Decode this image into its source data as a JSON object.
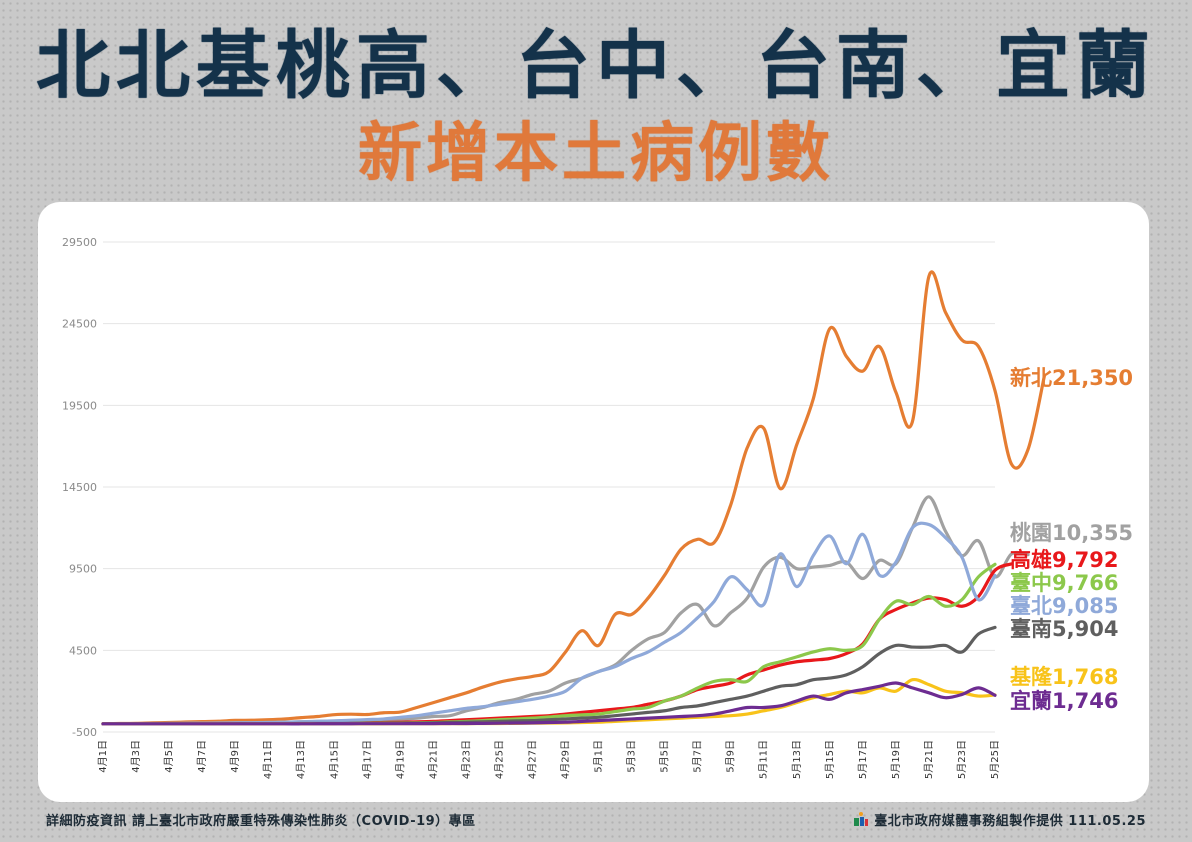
{
  "header": {
    "title": "北北基桃高、台中、台南、宜蘭",
    "subtitle": "新增本土病例數"
  },
  "footer": {
    "left": "詳細防疫資訊 請上臺北市政府嚴重特殊傳染性肺炎（COVID-19）專區",
    "right": "臺北市政府媒體事務組製作提供 111.05.25",
    "logo_icon": "taipei-city-logo-icon"
  },
  "chart_data": {
    "type": "line",
    "title": "新增本土病例數",
    "ylim": [
      -500,
      29500
    ],
    "yticks": [
      "29500",
      "24500",
      "19500",
      "14500",
      "9500",
      "4500",
      "-500"
    ],
    "xticks": [
      "4月1日",
      "4月3日",
      "4月5日",
      "4月7日",
      "4月9日",
      "4月11日",
      "4月13日",
      "4月15日",
      "4月17日",
      "4月19日",
      "4月21日",
      "4月23日",
      "4月25日",
      "4月27日",
      "4月29日",
      "5月1日",
      "5月3日",
      "5月5日",
      "5月7日",
      "5月9日",
      "5月11日",
      "5月13日",
      "5月15日",
      "5月17日",
      "5月19日",
      "5月21日",
      "5月23日",
      "5月25日"
    ],
    "grid": true,
    "series": [
      {
        "name": "新北",
        "label": "新北21,350",
        "color": "#e57d32",
        "values": [
          5,
          20,
          30,
          60,
          80,
          110,
          140,
          160,
          210,
          220,
          250,
          300,
          380,
          450,
          560,
          590,
          570,
          680,
          720,
          1000,
          1300,
          1600,
          1900,
          2250,
          2550,
          2750,
          2900,
          3200,
          4400,
          5700,
          4800,
          6700,
          6700,
          7700,
          9100,
          10700,
          11300,
          11100,
          13400,
          16900,
          18100,
          14400,
          17100,
          19900,
          24200,
          22500,
          21600,
          23100,
          20300,
          18500,
          27400,
          25200,
          23500,
          23100,
          20400,
          15900,
          16800,
          21350
        ]
      },
      {
        "name": "桃園",
        "label": "桃園10,355",
        "color": "#a1a1a1",
        "values": [
          5,
          10,
          15,
          20,
          30,
          30,
          40,
          40,
          60,
          60,
          80,
          100,
          130,
          150,
          170,
          200,
          200,
          230,
          280,
          350,
          450,
          500,
          800,
          1000,
          1300,
          1500,
          1800,
          2000,
          2500,
          2800,
          3200,
          3600,
          4500,
          5200,
          5600,
          6800,
          7300,
          6000,
          6800,
          7700,
          9600,
          10200,
          9500,
          9600,
          9700,
          9900,
          8900,
          10000,
          9800,
          12000,
          13900,
          11800,
          10300,
          11200,
          9000,
          10400,
          10355
        ]
      },
      {
        "name": "高雄",
        "label": "高雄9,792",
        "color": "#e8181b",
        "values": [
          0,
          0,
          0,
          0,
          10,
          10,
          10,
          10,
          20,
          20,
          20,
          30,
          30,
          40,
          50,
          50,
          60,
          80,
          100,
          120,
          150,
          200,
          250,
          300,
          350,
          400,
          450,
          500,
          600,
          700,
          800,
          900,
          1000,
          1200,
          1400,
          1700,
          2100,
          2300,
          2500,
          3000,
          3300,
          3600,
          3800,
          3900,
          4000,
          4300,
          4900,
          6400,
          7000,
          7400,
          7700,
          7600,
          7200,
          7800,
          9400,
          9792
        ]
      },
      {
        "name": "臺中",
        "label": "臺中9,766",
        "color": "#8cc84b",
        "values": [
          0,
          0,
          0,
          0,
          10,
          10,
          10,
          10,
          20,
          20,
          20,
          30,
          30,
          40,
          50,
          50,
          60,
          80,
          120,
          150,
          200,
          260,
          300,
          350,
          420,
          500,
          550,
          600,
          750,
          900,
          1000,
          1400,
          1700,
          2200,
          2600,
          2700,
          2600,
          3500,
          3800,
          4100,
          4400,
          4600,
          4500,
          4800,
          6400,
          7500,
          7300,
          7800,
          7200,
          7600,
          9000,
          9766
        ]
      },
      {
        "name": "臺北",
        "label": "臺北9,085",
        "color": "#8fa9d9",
        "values": [
          5,
          10,
          10,
          20,
          30,
          40,
          50,
          60,
          70,
          80,
          100,
          120,
          150,
          180,
          220,
          260,
          300,
          400,
          500,
          650,
          800,
          950,
          1050,
          1200,
          1350,
          1500,
          1700,
          2000,
          2800,
          3200,
          3500,
          4000,
          4400,
          5000,
          5600,
          6500,
          7500,
          9000,
          8200,
          7300,
          10400,
          8400,
          10300,
          11500,
          9800,
          11600,
          9100,
          9900,
          12000,
          12200,
          11400,
          10200,
          7600,
          9085
        ]
      },
      {
        "name": "臺南",
        "label": "臺南5,904",
        "color": "#5f5f5f",
        "values": [
          0,
          0,
          0,
          0,
          0,
          10,
          10,
          10,
          10,
          20,
          20,
          20,
          30,
          30,
          30,
          40,
          40,
          60,
          80,
          100,
          120,
          150,
          180,
          200,
          250,
          300,
          350,
          400,
          500,
          600,
          700,
          800,
          1000,
          1100,
          1300,
          1500,
          1700,
          2000,
          2300,
          2400,
          2700,
          2800,
          3000,
          3500,
          4300,
          4800,
          4700,
          4700,
          4800,
          4400,
          5500,
          5904
        ]
      },
      {
        "name": "基隆",
        "label": "基隆1,768",
        "color": "#f8c31a",
        "values": [
          0,
          0,
          0,
          0,
          0,
          5,
          5,
          5,
          10,
          10,
          10,
          15,
          15,
          20,
          20,
          30,
          40,
          50,
          60,
          80,
          100,
          150,
          200,
          250,
          300,
          350,
          400,
          450,
          500,
          600,
          800,
          1000,
          1300,
          1600,
          1800,
          2000,
          1900,
          2200,
          2000,
          2700,
          2400,
          2000,
          1900,
          1700,
          1768
        ]
      },
      {
        "name": "宜蘭",
        "label": "宜蘭1,746",
        "color": "#6d2c91",
        "values": [
          0,
          0,
          0,
          0,
          0,
          5,
          5,
          5,
          10,
          10,
          10,
          15,
          15,
          20,
          20,
          30,
          40,
          50,
          60,
          80,
          100,
          150,
          200,
          250,
          300,
          350,
          400,
          450,
          500,
          600,
          800,
          1000,
          1000,
          1100,
          1400,
          1700,
          1500,
          1900,
          2100,
          2300,
          2500,
          2200,
          1900,
          1600,
          1800,
          2200,
          1746
        ]
      }
    ]
  }
}
